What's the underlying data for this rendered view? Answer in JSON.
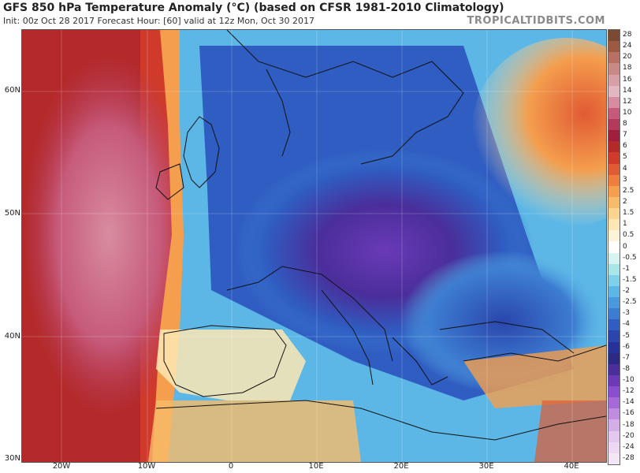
{
  "header": {
    "title": "GFS 850 hPa Temperature Anomaly (°C) (based on CFSR 1981-2010 Climatology)",
    "subtitle": "Init: 00z Oct 28 2017   Forecast Hour: [60]   valid at 12z Mon, Oct 30 2017",
    "brand": "TROPICALTIDBITS.COM"
  },
  "map": {
    "lat_labels": [
      "60N",
      "50N",
      "40N",
      "30N"
    ],
    "lon_labels": [
      "20W",
      "10W",
      "0",
      "10E",
      "20E",
      "30E",
      "40E"
    ]
  },
  "colorbar": {
    "labels": [
      "28",
      "24",
      "20",
      "18",
      "16",
      "14",
      "12",
      "10",
      "8",
      "7",
      "6",
      "5",
      "4",
      "3",
      "2.5",
      "2",
      "1.5",
      "1",
      "0.5",
      "0",
      "-0.5",
      "-1",
      "-1.5",
      "-2",
      "-2.5",
      "-3",
      "-4",
      "-5",
      "-6",
      "-7",
      "-8",
      "-10",
      "-12",
      "-14",
      "-16",
      "-18",
      "-20",
      "-24",
      "-28"
    ],
    "colors": [
      "#7a4a33",
      "#9c5a40",
      "#b87063",
      "#c98a85",
      "#d8a0a6",
      "#e3b7c0",
      "#d88ca0",
      "#c65a7a",
      "#b43a5c",
      "#9f1f3c",
      "#b42a2a",
      "#cf3a2a",
      "#e05a33",
      "#ee7e3b",
      "#f49e4e",
      "#f8bb6a",
      "#fbd48d",
      "#fde7b4",
      "#fdf4d8",
      "#ffffff",
      "#d7f3f2",
      "#a8e6ea",
      "#7fd0ea",
      "#5cb7e6",
      "#4a99dc",
      "#3d7dd1",
      "#2f5dc2",
      "#2a46ad",
      "#26329a",
      "#2b2a85",
      "#4a2e9a",
      "#6a3ab7",
      "#8a4fcf",
      "#a66ad8",
      "#bf8ce0",
      "#d4aee8",
      "#e4c8ef",
      "#efd8f3",
      "#f5e6f6"
    ]
  }
}
